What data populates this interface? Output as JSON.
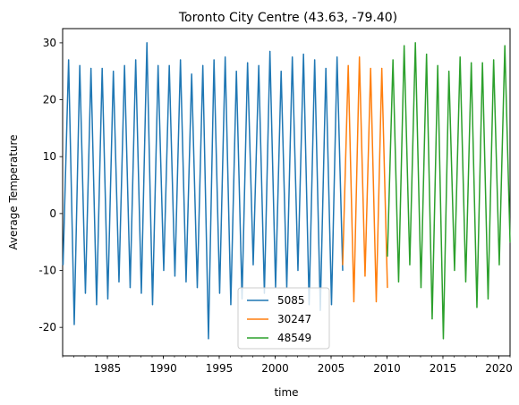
{
  "chart_data": {
    "type": "line",
    "title": "Toronto City Centre (43.63, -79.40)",
    "xlabel": "time",
    "ylabel": "Average Temperature",
    "xlim": [
      "1981-01-01",
      "2021-01-01"
    ],
    "ylim": [
      -25,
      32.5
    ],
    "x_ticks": [
      "1985",
      "1990",
      "1995",
      "2000",
      "2005",
      "2010",
      "2015",
      "2020"
    ],
    "y_ticks": [
      -20,
      -10,
      0,
      10,
      20,
      30
    ],
    "legend_position": "lower-center",
    "series": [
      {
        "name": "5085",
        "color": "#1f77b4",
        "x": [
          "1981-01-15",
          "1981-07-15",
          "1982-01-15",
          "1982-07-15",
          "1983-01-15",
          "1983-07-15",
          "1984-01-15",
          "1984-07-15",
          "1985-01-15",
          "1985-07-15",
          "1986-01-15",
          "1986-07-15",
          "1987-01-15",
          "1987-07-15",
          "1988-01-15",
          "1988-07-15",
          "1989-01-15",
          "1989-07-15",
          "1990-01-15",
          "1990-07-15",
          "1991-01-15",
          "1991-07-15",
          "1992-01-15",
          "1992-07-15",
          "1993-01-15",
          "1993-07-15",
          "1994-01-15",
          "1994-07-15",
          "1995-01-15",
          "1995-07-15",
          "1996-01-15",
          "1996-07-15",
          "1997-01-15",
          "1997-07-15",
          "1998-01-15",
          "1998-07-15",
          "1999-01-15",
          "1999-07-15",
          "2000-01-15",
          "2000-07-15",
          "2001-01-15",
          "2001-07-15",
          "2002-01-15",
          "2002-07-15",
          "2003-01-15",
          "2003-07-15",
          "2004-01-15",
          "2004-07-15",
          "2005-01-15",
          "2005-07-15",
          "2006-01-15"
        ],
        "y": [
          -9,
          27,
          -19.5,
          26,
          -14,
          25.5,
          -16,
          25.5,
          -15,
          25,
          -12,
          26,
          -13,
          27,
          -14,
          30,
          -16,
          26,
          -10,
          26,
          -11,
          27,
          -12,
          24.5,
          -13,
          26,
          -22,
          27,
          -14,
          27.5,
          -16,
          25,
          -15,
          26.5,
          -9,
          26,
          -14,
          28.5,
          -13,
          25,
          -13,
          27.5,
          -10,
          28,
          -16,
          27,
          -17,
          25.5,
          -16,
          27.5,
          -10
        ]
      },
      {
        "name": "30247",
        "color": "#ff7f0e",
        "x": [
          "2006-01-15",
          "2006-07-15",
          "2007-01-15",
          "2007-07-15",
          "2008-01-15",
          "2008-07-15",
          "2009-01-15",
          "2009-07-15",
          "2010-01-15"
        ],
        "y": [
          -9,
          26,
          -15.5,
          27.5,
          -11,
          25.5,
          -15.5,
          25.5,
          -13
        ]
      },
      {
        "name": "48549",
        "color": "#2ca02c",
        "x": [
          "2010-01-15",
          "2010-07-15",
          "2011-01-15",
          "2011-07-15",
          "2012-01-15",
          "2012-07-15",
          "2013-01-15",
          "2013-07-15",
          "2014-01-15",
          "2014-07-15",
          "2015-01-15",
          "2015-07-15",
          "2016-01-15",
          "2016-07-15",
          "2017-01-15",
          "2017-07-15",
          "2018-01-15",
          "2018-07-15",
          "2019-01-15",
          "2019-07-15",
          "2020-01-15",
          "2020-07-15",
          "2021-01-01"
        ],
        "y": [
          -7.5,
          27,
          -12,
          29.5,
          -9,
          30,
          -13,
          28,
          -18.5,
          26,
          -22,
          25,
          -10,
          27.5,
          -12,
          26.5,
          -16.5,
          26.5,
          -15,
          27,
          -9,
          29.5,
          -5
        ]
      }
    ]
  }
}
